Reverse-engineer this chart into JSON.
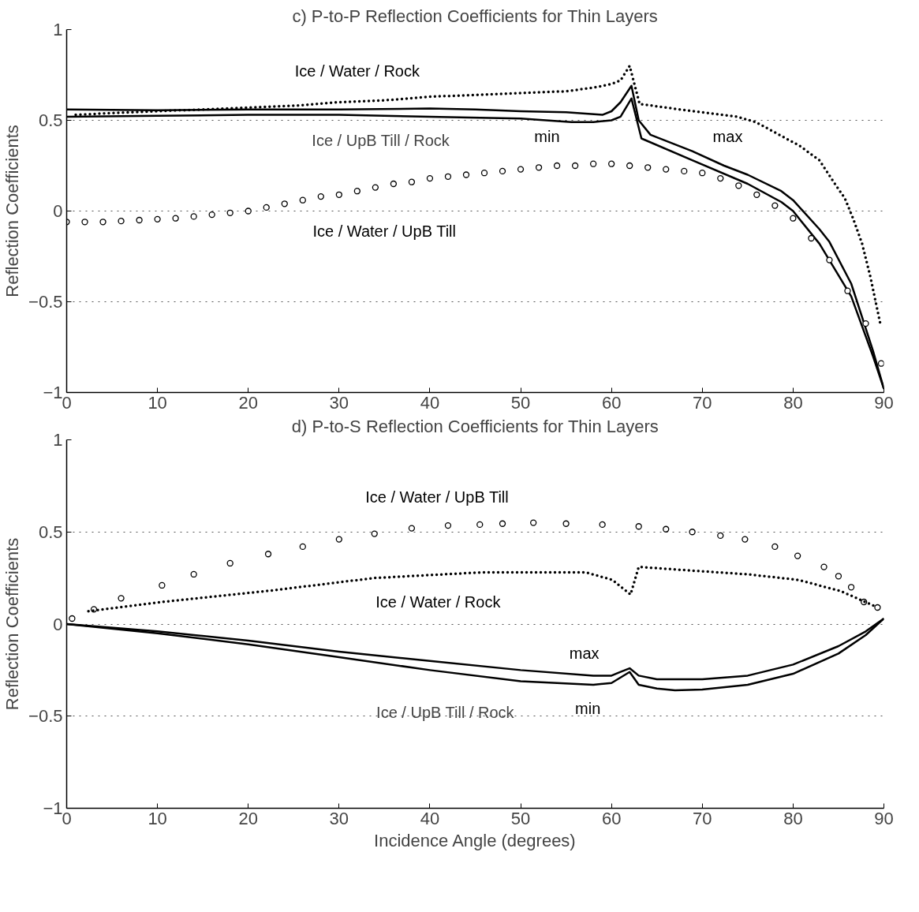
{
  "chart_data": [
    {
      "type": "line",
      "title": "c) P-to-P Reflection Coefficients for Thin Layers",
      "ylabel": "Reflection Coefficients",
      "xlim": [
        0,
        90
      ],
      "ylim": [
        -1,
        1
      ],
      "xticks": [
        0,
        10,
        20,
        30,
        40,
        50,
        60,
        70,
        80,
        90
      ],
      "yticks": [
        -1,
        -0.5,
        0,
        0.5,
        1
      ],
      "grid": "y",
      "series": [
        {
          "name": "Ice / Water / Rock",
          "line_style": "dotted",
          "color": "#000000",
          "x": [
            1,
            5,
            10,
            15,
            20,
            25,
            30,
            35,
            40,
            45,
            50,
            55,
            58,
            60,
            61,
            62,
            63.1,
            67.5,
            73.8,
            75.9,
            80.7,
            82.9,
            84.6,
            85.7,
            86.6,
            87.6,
            88.5,
            89.6
          ],
          "values": [
            0.53,
            0.54,
            0.55,
            0.56,
            0.57,
            0.58,
            0.6,
            0.61,
            0.63,
            0.64,
            0.65,
            0.66,
            0.68,
            0.7,
            0.72,
            0.8,
            0.59,
            0.56,
            0.52,
            0.49,
            0.36,
            0.28,
            0.15,
            0.07,
            -0.04,
            -0.18,
            -0.36,
            -0.62
          ]
        },
        {
          "name": "max",
          "line_style": "solid",
          "color": "#000000",
          "x": [
            0,
            10,
            20,
            30,
            40,
            45,
            50,
            55,
            59,
            60,
            61,
            62.2,
            63,
            64.3,
            68.9,
            72.4,
            75,
            78.7,
            80,
            82.9,
            84,
            86.4,
            88.8,
            90
          ],
          "values": [
            0.56,
            0.555,
            0.56,
            0.56,
            0.565,
            0.56,
            0.55,
            0.545,
            0.53,
            0.55,
            0.6,
            0.69,
            0.5,
            0.42,
            0.33,
            0.25,
            0.2,
            0.11,
            0.06,
            -0.1,
            -0.17,
            -0.4,
            -0.77,
            -0.98
          ]
        },
        {
          "name": "min",
          "line_style": "solid",
          "color": "#000000",
          "x": [
            0,
            10,
            20,
            30,
            40,
            50,
            55.6,
            58,
            60,
            61,
            62.2,
            63.3,
            68.9,
            75,
            78.7,
            80,
            82.9,
            86.4,
            88.8,
            90
          ],
          "values": [
            0.52,
            0.525,
            0.53,
            0.53,
            0.52,
            0.51,
            0.49,
            0.49,
            0.5,
            0.52,
            0.62,
            0.4,
            0.28,
            0.15,
            0.05,
            0.0,
            -0.18,
            -0.47,
            -0.8,
            -0.98
          ]
        },
        {
          "name": "Ice / Water / UpB Till",
          "type": "scatter",
          "marker": "circle",
          "color": "#000000",
          "x": [
            0,
            2,
            4,
            6,
            8,
            10,
            12,
            14,
            16,
            18,
            20,
            22,
            24,
            26,
            28,
            30,
            32,
            34,
            36,
            38,
            40,
            42,
            44,
            46,
            48,
            50,
            52,
            54,
            56,
            58,
            60,
            62,
            64,
            66,
            68,
            70,
            72,
            74,
            76,
            78,
            80,
            82,
            84,
            86,
            88,
            89.7
          ],
          "values": [
            -0.06,
            -0.06,
            -0.06,
            -0.055,
            -0.05,
            -0.045,
            -0.04,
            -0.03,
            -0.02,
            -0.01,
            0.0,
            0.02,
            0.04,
            0.06,
            0.08,
            0.09,
            0.11,
            0.13,
            0.15,
            0.16,
            0.18,
            0.19,
            0.2,
            0.21,
            0.22,
            0.23,
            0.24,
            0.25,
            0.25,
            0.26,
            0.26,
            0.25,
            0.24,
            0.23,
            0.22,
            0.21,
            0.18,
            0.14,
            0.09,
            0.03,
            -0.04,
            -0.15,
            -0.27,
            -0.44,
            -0.62,
            -0.84
          ]
        }
      ],
      "annotations": [
        "Ice / UpB Till / Rock"
      ]
    },
    {
      "type": "line",
      "title": "d) P-to-S Reflection Coefficients for Thin Layers",
      "xlabel": "Incidence Angle (degrees)",
      "ylabel": "Reflection Coefficients",
      "xlim": [
        0,
        90
      ],
      "ylim": [
        -1,
        1
      ],
      "xticks": [
        0,
        10,
        20,
        30,
        40,
        50,
        60,
        70,
        80,
        90
      ],
      "yticks": [
        -1,
        -0.5,
        0,
        0.5,
        1
      ],
      "grid": "y",
      "series": [
        {
          "name": "Ice / Water / UpB Till",
          "type": "scatter",
          "marker": "circle",
          "color": "#000000",
          "x": [
            0.6,
            3,
            6,
            10.5,
            14,
            18,
            22.2,
            26,
            30,
            33.9,
            38,
            42,
            45.5,
            48,
            51.4,
            55,
            59,
            63,
            66,
            68.9,
            72,
            74.7,
            78,
            80.5,
            83.4,
            85,
            86.4,
            87.8,
            89.3
          ],
          "values": [
            0.03,
            0.08,
            0.14,
            0.21,
            0.27,
            0.33,
            0.38,
            0.42,
            0.46,
            0.49,
            0.52,
            0.535,
            0.54,
            0.545,
            0.55,
            0.545,
            0.54,
            0.53,
            0.515,
            0.5,
            0.48,
            0.46,
            0.42,
            0.37,
            0.31,
            0.26,
            0.2,
            0.12,
            0.09
          ]
        },
        {
          "name": "Ice / Water / Rock",
          "line_style": "dotted",
          "color": "#000000",
          "x": [
            2.4,
            10.5,
            22.2,
            33.9,
            45.5,
            57.2,
            60.1,
            62.1,
            63,
            68.9,
            75,
            80.5,
            85.2,
            89.3
          ],
          "values": [
            0.07,
            0.12,
            0.18,
            0.25,
            0.28,
            0.28,
            0.24,
            0.16,
            0.31,
            0.29,
            0.27,
            0.24,
            0.18,
            0.09
          ]
        },
        {
          "name": "max",
          "line_style": "solid",
          "color": "#000000",
          "x": [
            0,
            10,
            20,
            30,
            40,
            50,
            58,
            60,
            61,
            62,
            63,
            65,
            70,
            75,
            80,
            85,
            88,
            90
          ],
          "values": [
            0,
            -0.04,
            -0.09,
            -0.15,
            -0.2,
            -0.25,
            -0.28,
            -0.28,
            -0.26,
            -0.24,
            -0.28,
            -0.3,
            -0.3,
            -0.28,
            -0.22,
            -0.12,
            -0.04,
            0.03
          ]
        },
        {
          "name": "min",
          "line_style": "solid",
          "color": "#000000",
          "x": [
            0,
            10,
            20,
            30,
            40,
            50,
            58,
            60,
            61,
            62,
            63,
            65,
            67,
            70,
            75,
            80,
            85,
            88,
            90
          ],
          "values": [
            0,
            -0.05,
            -0.11,
            -0.18,
            -0.25,
            -0.31,
            -0.33,
            -0.32,
            -0.29,
            -0.26,
            -0.33,
            -0.35,
            -0.36,
            -0.355,
            -0.33,
            -0.27,
            -0.16,
            -0.06,
            0.03
          ]
        }
      ],
      "annotations": [
        "Ice / UpB Till / Rock"
      ]
    }
  ]
}
